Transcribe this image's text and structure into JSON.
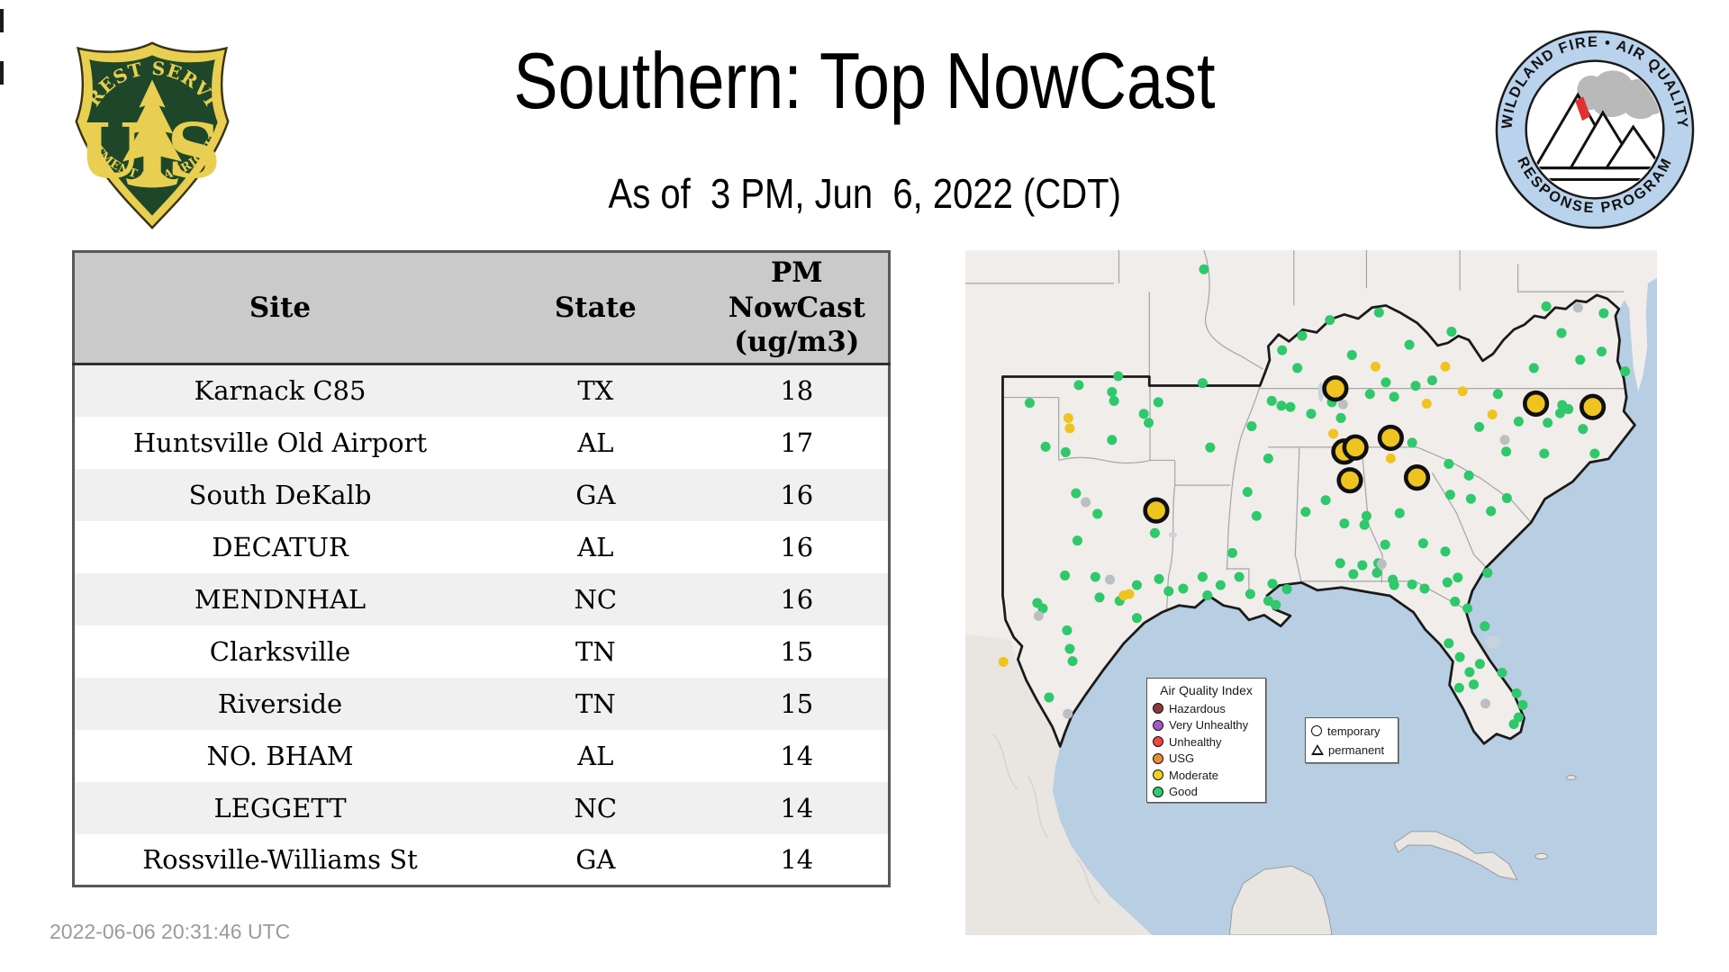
{
  "header": {
    "title": "Southern: Top NowCast",
    "subtitle": "As of  3 PM, Jun  6, 2022 (CDT)"
  },
  "usfs_logo": {
    "arc_top": "FOREST SERVICE",
    "letter_left": "U",
    "letter_right": "S",
    "arc_bottom": "DEPARTMENT OF AGRICULTURE",
    "green": "#1e4729",
    "yellow": "#e8cf52"
  },
  "wfaqrp_logo": {
    "arc_top": "WILDLAND FIRE  •  AIR QUALITY",
    "arc_bottom": "RESPONSE PROGRAM",
    "ring_color": "#bad3ed",
    "flame_color": "#e03030",
    "smoke_color": "#b9b9b9"
  },
  "table": {
    "columns": [
      "Site",
      "State",
      "PM NowCast (ug/m3)"
    ],
    "pm_header_lines": [
      "PM",
      "NowCast",
      "(ug/m3)"
    ],
    "rows": [
      {
        "site": "Karnack C85",
        "state": "TX",
        "value": "18"
      },
      {
        "site": "Huntsville Old Airport",
        "state": "AL",
        "value": "17"
      },
      {
        "site": "South DeKalb",
        "state": "GA",
        "value": "16"
      },
      {
        "site": "DECATUR",
        "state": "AL",
        "value": "16"
      },
      {
        "site": "MENDNHAL",
        "state": "NC",
        "value": "16"
      },
      {
        "site": "Clarksville",
        "state": "TN",
        "value": "15"
      },
      {
        "site": "Riverside",
        "state": "TN",
        "value": "15"
      },
      {
        "site": "NO. BHAM",
        "state": "AL",
        "value": "14"
      },
      {
        "site": "LEGGETT",
        "state": "NC",
        "value": "14"
      },
      {
        "site": "Rossville-Williams St",
        "state": "GA",
        "value": "14"
      }
    ]
  },
  "footer": {
    "timestamp": "2022-06-06 20:31:46 UTC"
  },
  "map": {
    "legend": {
      "title": "Air Quality Index",
      "items": [
        {
          "label": "Hazardous",
          "color": "#8a3a3c"
        },
        {
          "label": "Very Unhealthy",
          "color": "#a35bc4"
        },
        {
          "label": "Unhealthy",
          "color": "#ef4641"
        },
        {
          "label": "USG",
          "color": "#ec8b2f"
        },
        {
          "label": "Moderate",
          "color": "#f2d021"
        },
        {
          "label": "Good",
          "color": "#2ecc70"
        }
      ]
    },
    "marker_legend": {
      "temporary": "temporary",
      "permanent": "permanent"
    },
    "colors": {
      "good": "#2fc96b",
      "moderate": "#f0c420",
      "no_data": "#bbbfc1",
      "top_site_fill": "#f0c420",
      "top_site_stroke": "#101010",
      "water": "#b7cee3",
      "land": "#f0edea",
      "mexico_land": "#e9e5e0",
      "state_line": "#a6a6aa",
      "region_border": "#1a1a1a"
    },
    "sites": {
      "good": [
        [
          22.1,
          18.4
        ],
        [
          34.5,
          2.8
        ],
        [
          9.3,
          22.3
        ],
        [
          16.4,
          19.7
        ],
        [
          21.2,
          20.7
        ],
        [
          21.5,
          22.0
        ],
        [
          25.8,
          23.9
        ],
        [
          26.5,
          25.2
        ],
        [
          11.6,
          28.7
        ],
        [
          14.5,
          29.5
        ],
        [
          21.2,
          27.7
        ],
        [
          27.9,
          22.2
        ],
        [
          34.3,
          19.4
        ],
        [
          35.4,
          28.8
        ],
        [
          27.4,
          41.3
        ],
        [
          16.0,
          35.5
        ],
        [
          19.1,
          38.5
        ],
        [
          16.2,
          42.4
        ],
        [
          14.4,
          47.5
        ],
        [
          18.8,
          47.7
        ],
        [
          19.4,
          50.7
        ],
        [
          10.4,
          51.5
        ],
        [
          11.2,
          52.3
        ],
        [
          14.7,
          55.5
        ],
        [
          24.8,
          48.9
        ],
        [
          28.0,
          48.0
        ],
        [
          24.8,
          53.7
        ],
        [
          22.3,
          51.2
        ],
        [
          15.1,
          58.2
        ],
        [
          15.5,
          60.0
        ],
        [
          12.1,
          65.3
        ],
        [
          29.4,
          49.8
        ],
        [
          31.5,
          49.4
        ],
        [
          34.3,
          47.7
        ],
        [
          36.9,
          48.9
        ],
        [
          39.6,
          47.7
        ],
        [
          41.2,
          50.2
        ],
        [
          44.4,
          48.7
        ],
        [
          43.8,
          51.2
        ],
        [
          44.9,
          51.8
        ],
        [
          46.5,
          49.5
        ],
        [
          35.0,
          50.4
        ],
        [
          40.8,
          35.3
        ],
        [
          42.1,
          38.8
        ],
        [
          38.6,
          44.2
        ],
        [
          43.8,
          30.4
        ],
        [
          41.4,
          25.7
        ],
        [
          44.3,
          22.0
        ],
        [
          45.7,
          22.7
        ],
        [
          48.7,
          12.5
        ],
        [
          52.7,
          10.2
        ],
        [
          59.8,
          9.1
        ],
        [
          64.2,
          13.8
        ],
        [
          70.3,
          11.9
        ],
        [
          55.9,
          15.3
        ],
        [
          48.0,
          17.2
        ],
        [
          45.8,
          14.6
        ],
        [
          50.0,
          23.9
        ],
        [
          47.0,
          22.9
        ],
        [
          54.3,
          24.5
        ],
        [
          58.5,
          21.0
        ],
        [
          62.0,
          21.4
        ],
        [
          65.1,
          19.8
        ],
        [
          67.5,
          19.0
        ],
        [
          60.8,
          19.3
        ],
        [
          53.0,
          22.2
        ],
        [
          64.6,
          28.1
        ],
        [
          84.0,
          8.2
        ],
        [
          92.3,
          9.2
        ],
        [
          86.2,
          12.1
        ],
        [
          92.0,
          14.8
        ],
        [
          95.4,
          17.7
        ],
        [
          82.2,
          17.2
        ],
        [
          88.9,
          16.0
        ],
        [
          77.0,
          21.0
        ],
        [
          86.3,
          22.6
        ],
        [
          87.2,
          23.2
        ],
        [
          86.0,
          23.8
        ],
        [
          80.0,
          25.0
        ],
        [
          84.2,
          25.2
        ],
        [
          78.2,
          29.4
        ],
        [
          83.7,
          29.7
        ],
        [
          91.0,
          29.7
        ],
        [
          89.3,
          26.1
        ],
        [
          74.3,
          25.8
        ],
        [
          69.9,
          31.2
        ],
        [
          72.8,
          32.9
        ],
        [
          70.1,
          35.7
        ],
        [
          73.1,
          36.3
        ],
        [
          76.0,
          38.1
        ],
        [
          78.3,
          36.2
        ],
        [
          62.8,
          38.4
        ],
        [
          58.0,
          38.8
        ],
        [
          60.7,
          43.0
        ],
        [
          66.2,
          42.8
        ],
        [
          69.4,
          44.0
        ],
        [
          62.0,
          48.9
        ],
        [
          66.4,
          49.4
        ],
        [
          69.7,
          48.5
        ],
        [
          52.1,
          36.5
        ],
        [
          54.8,
          39.9
        ],
        [
          57.7,
          40.1
        ],
        [
          54.2,
          45.7
        ],
        [
          57.4,
          46.0
        ],
        [
          59.7,
          45.7
        ],
        [
          49.2,
          38.2
        ],
        [
          56.1,
          47.3
        ],
        [
          59.5,
          47.1
        ],
        [
          61.8,
          48.1
        ],
        [
          64.6,
          48.8
        ],
        [
          71.2,
          47.8
        ],
        [
          75.5,
          47.1
        ],
        [
          70.8,
          51.3
        ],
        [
          72.6,
          52.3
        ],
        [
          75.1,
          54.9
        ],
        [
          69.9,
          57.4
        ],
        [
          71.5,
          59.4
        ],
        [
          72.9,
          61.6
        ],
        [
          71.4,
          63.9
        ],
        [
          73.5,
          63.4
        ],
        [
          77.6,
          61.7
        ],
        [
          79.7,
          64.7
        ],
        [
          80.6,
          66.4
        ],
        [
          80.0,
          68.2
        ],
        [
          79.3,
          69.2
        ],
        [
          74.4,
          60.4
        ]
      ],
      "moderate": [
        [
          59.3,
          17.0
        ],
        [
          69.4,
          17.0
        ],
        [
          71.9,
          20.6
        ],
        [
          66.7,
          22.4
        ],
        [
          76.2,
          24.0
        ],
        [
          53.2,
          26.8
        ],
        [
          61.5,
          30.4
        ],
        [
          14.9,
          24.5
        ],
        [
          15.1,
          26.0
        ],
        [
          22.9,
          50.4
        ],
        [
          23.7,
          50.2
        ],
        [
          5.5,
          60.1
        ]
      ],
      "no_data": [
        [
          88.6,
          8.4
        ],
        [
          54.6,
          22.5
        ],
        [
          78.0,
          27.7
        ],
        [
          17.4,
          36.8
        ],
        [
          10.6,
          53.4
        ],
        [
          20.9,
          48.1
        ],
        [
          14.8,
          67.7
        ],
        [
          60.2,
          45.8
        ],
        [
          75.2,
          66.2
        ]
      ],
      "top_sites": [
        [
          53.5,
          20.2
        ],
        [
          61.5,
          27.4
        ],
        [
          54.8,
          29.4
        ],
        [
          56.4,
          28.8
        ],
        [
          55.6,
          33.6
        ],
        [
          65.3,
          33.2
        ],
        [
          27.6,
          38.0
        ],
        [
          82.5,
          22.4
        ],
        [
          90.7,
          22.9
        ]
      ]
    }
  }
}
